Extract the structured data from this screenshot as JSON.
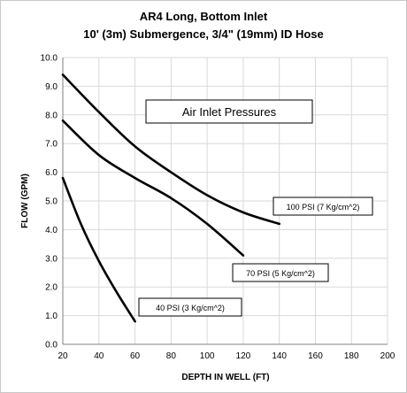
{
  "chart_data": {
    "type": "line",
    "title": "AR4 Long, Bottom Inlet",
    "subtitle": "10' (3m) Submergence, 3/4\" (19mm) ID Hose",
    "xlabel": "DEPTH IN WELL (FT)",
    "ylabel": "FLOW (GPM)",
    "xlim": [
      20,
      200
    ],
    "ylim": [
      0,
      10
    ],
    "x_ticks": [
      "20",
      "40",
      "60",
      "80",
      "100",
      "120",
      "140",
      "160",
      "180",
      "200"
    ],
    "y_ticks": [
      "0.0",
      "1.0",
      "2.0",
      "3.0",
      "4.0",
      "5.0",
      "6.0",
      "7.0",
      "8.0",
      "9.0",
      "10.0"
    ],
    "grid": true,
    "legend_box": "Air Inlet Pressures",
    "series": [
      {
        "name": "100 PSI (7 Kg/cm^2)",
        "x": [
          20,
          40,
          60,
          80,
          100,
          120,
          140
        ],
        "y": [
          9.4,
          8.1,
          6.9,
          6.0,
          5.2,
          4.6,
          4.2
        ]
      },
      {
        "name": "70 PSI (5 Kg/cm^2)",
        "x": [
          20,
          40,
          60,
          80,
          100,
          120
        ],
        "y": [
          7.8,
          6.6,
          5.8,
          5.1,
          4.2,
          3.1
        ]
      },
      {
        "name": "40 PSI (3 Kg/cm^2)",
        "x": [
          20,
          30,
          40,
          50,
          60
        ],
        "y": [
          5.8,
          4.2,
          2.9,
          1.8,
          0.8
        ]
      }
    ],
    "colors": {
      "line": "#000000",
      "grid": "#d9d9d9",
      "axis": "#7f7f7f",
      "text": "#000000"
    }
  }
}
